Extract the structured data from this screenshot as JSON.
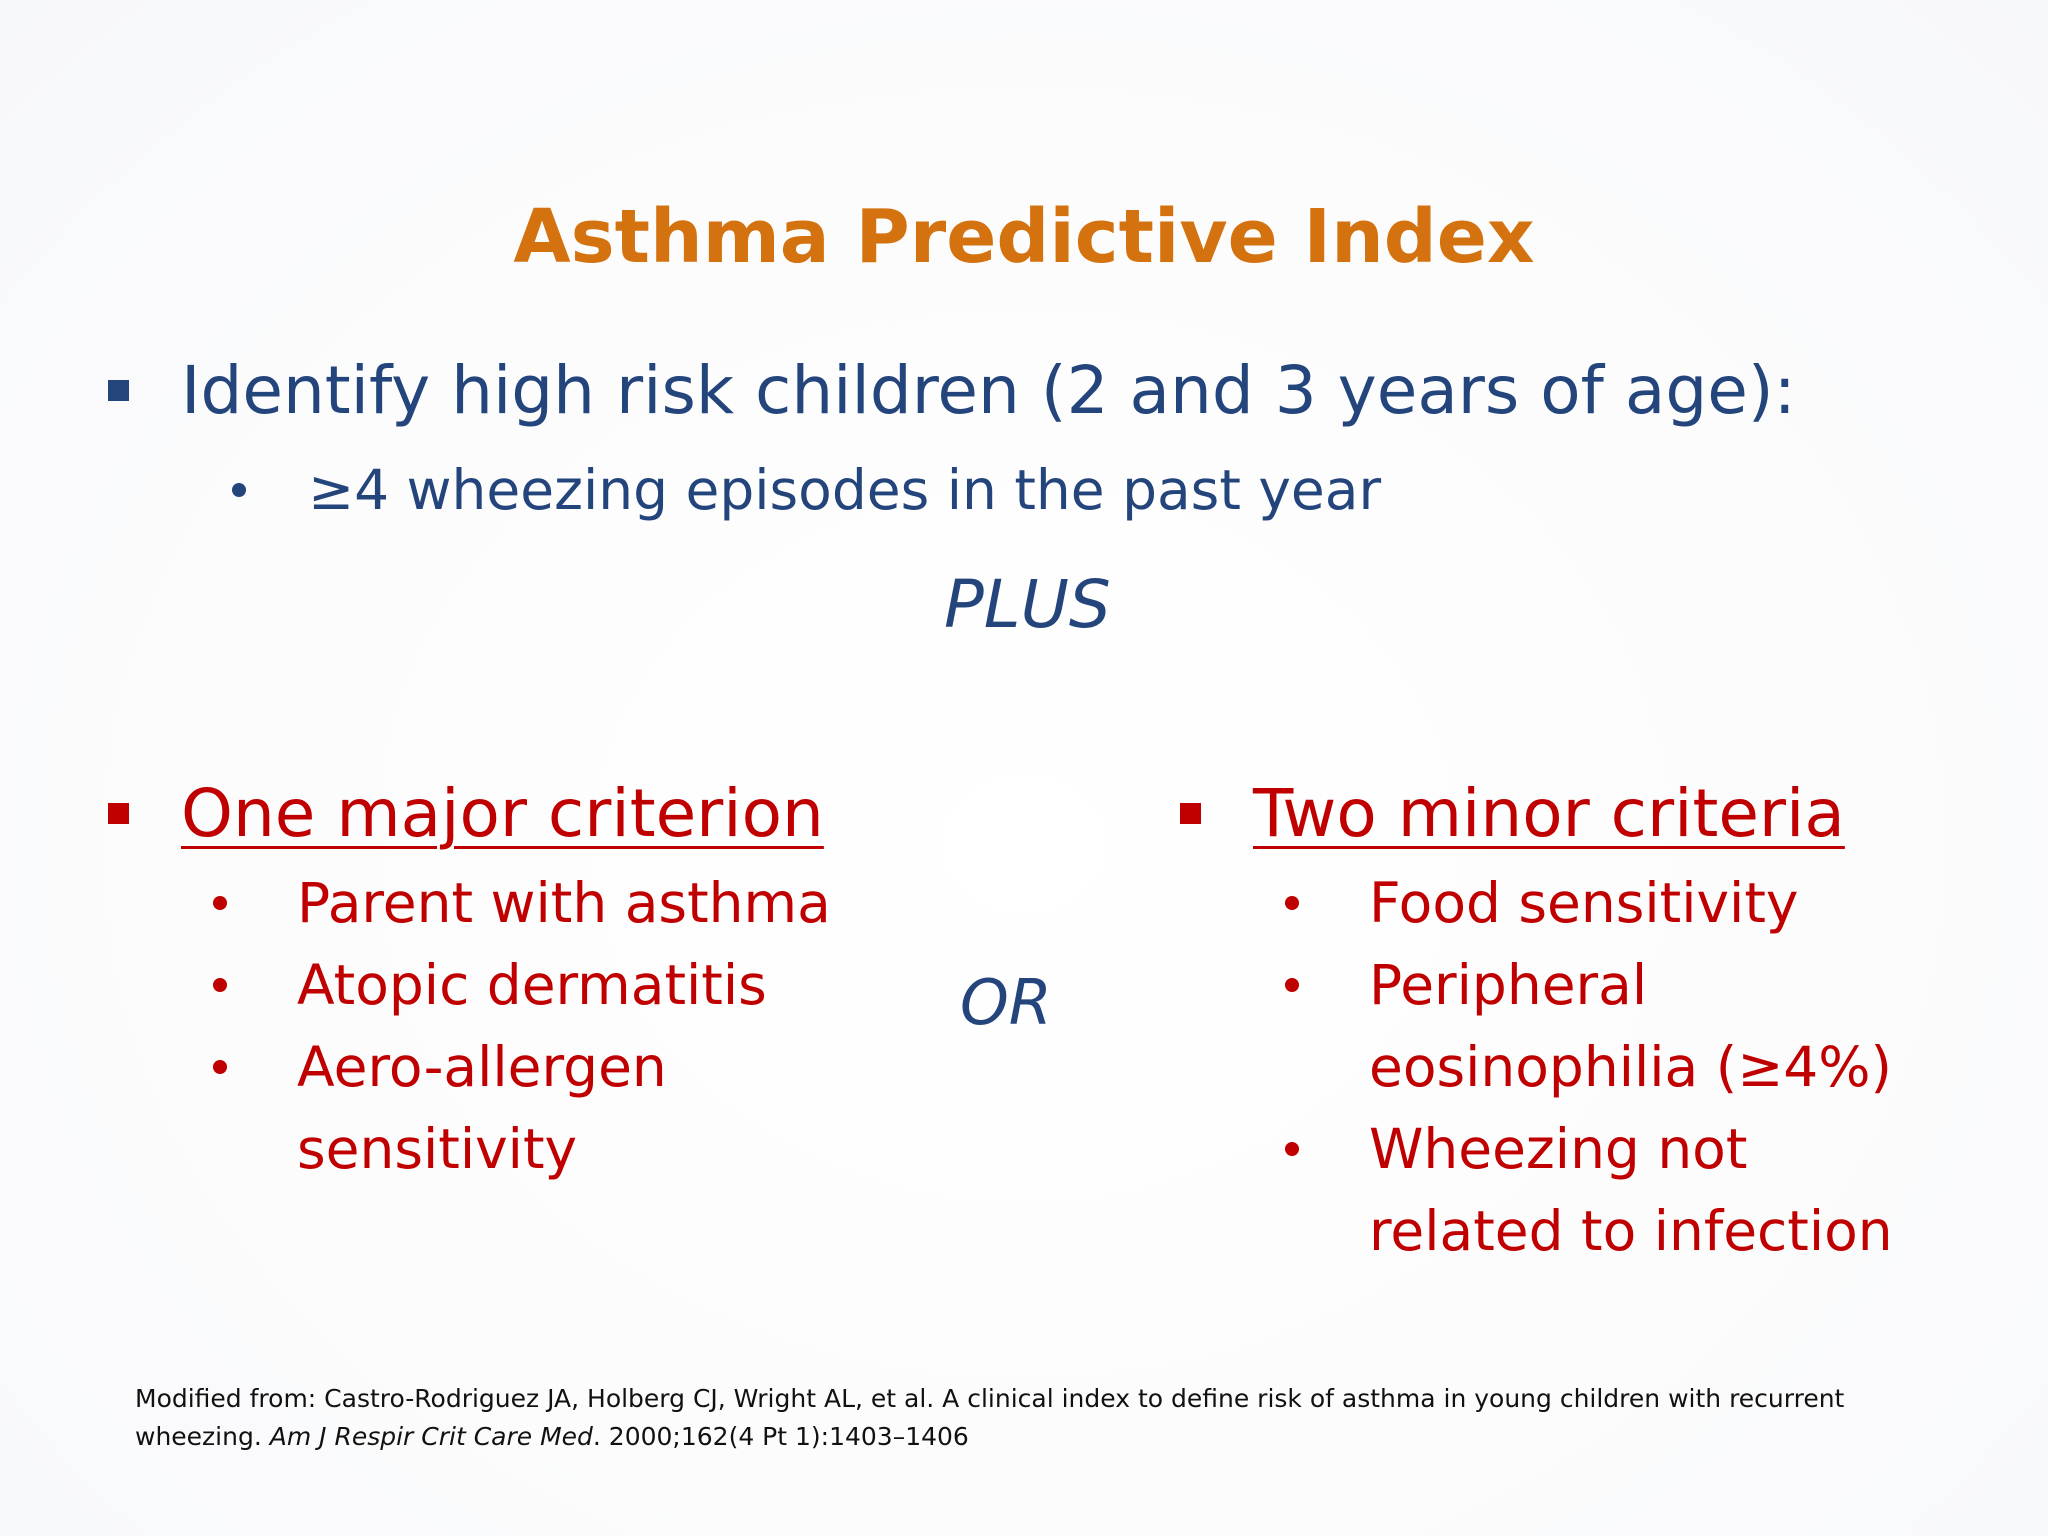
{
  "slide": {
    "title": "Asthma Predictive Index",
    "main_bullet": "Identify high risk children (2 and 3 years of age):",
    "sub_bullet": "≥4 wheezing episodes in the past year",
    "plus_label": "PLUS",
    "or_label": "OR",
    "major": {
      "heading": "One major criterion",
      "items": [
        "Parent with asthma",
        "Atopic dermatitis",
        "Aero-allergen sensitivity"
      ]
    },
    "minor": {
      "heading": "Two minor criteria",
      "items": [
        "Food sensitivity",
        "Peripheral eosinophilia (≥4%)",
        "Wheezing not related to infection"
      ]
    },
    "footer": {
      "prefix": "Modified from: Castro-Rodriguez JA, Holberg CJ, Wright AL, et al. A clinical index to define risk of asthma in young children with recurrent wheezing. ",
      "journal": "Am J Respir Crit Care Med",
      "suffix": ". 2000;162(4 Pt 1):1403–1406"
    }
  },
  "colors": {
    "title": "#d4720f",
    "blue_text": "#24457c",
    "red_text": "#c00000"
  }
}
